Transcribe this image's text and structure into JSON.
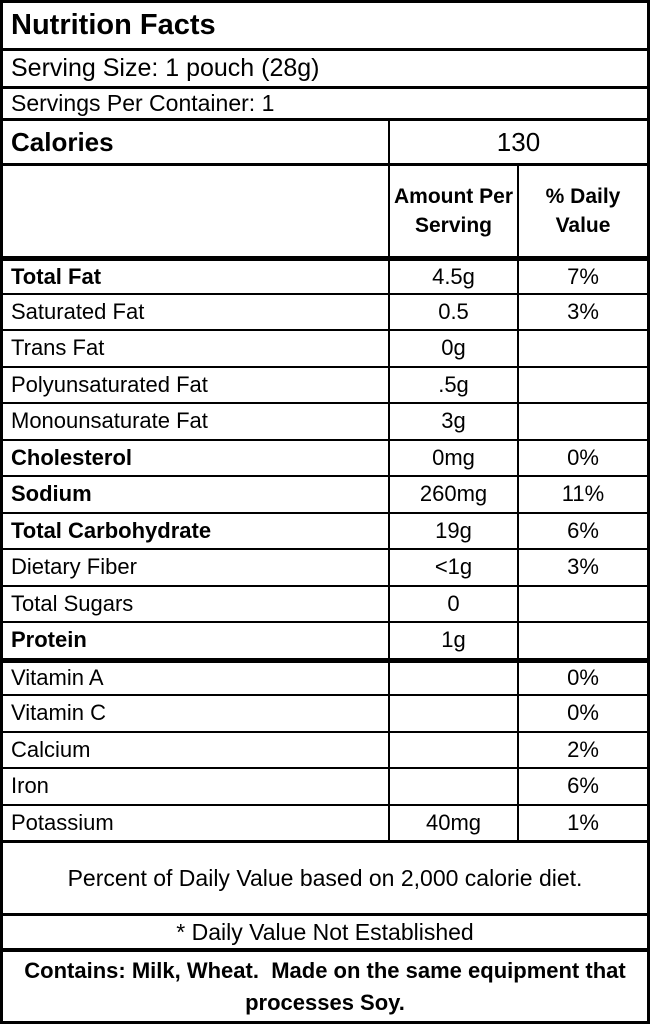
{
  "title": "Nutrition Facts",
  "serving_size": "Serving Size: 1 pouch (28g)",
  "servings_per_container": "Servings Per Container: 1",
  "calories": {
    "label": "Calories",
    "value": "130"
  },
  "columns": {
    "amount": "Amount Per Serving",
    "daily_value": "% Daily Value"
  },
  "nutrients": [
    {
      "label": "Total Fat",
      "amount": "4.5g",
      "dv": "7%"
    },
    {
      "label": "Saturated Fat",
      "amount": "0.5",
      "dv": "3%"
    },
    {
      "label": "Trans Fat",
      "amount": "0g",
      "dv": ""
    },
    {
      "label": "Polyunsaturated Fat",
      "amount": ".5g",
      "dv": ""
    },
    {
      "label": "Monounsaturate Fat",
      "amount": "3g",
      "dv": ""
    },
    {
      "label": "Cholesterol",
      "amount": "0mg",
      "dv": "0%"
    },
    {
      "label": "Sodium",
      "amount": "260mg",
      "dv": "11%"
    },
    {
      "label": "Total Carbohydrate",
      "amount": "19g",
      "dv": "6%"
    },
    {
      "label": "Dietary Fiber",
      "amount": "<1g",
      "dv": "3%"
    },
    {
      "label": "Total Sugars",
      "amount": "0",
      "dv": ""
    },
    {
      "label": "Protein",
      "amount": "1g",
      "dv": ""
    }
  ],
  "vitamins": [
    {
      "label": "Vitamin A",
      "amount": "",
      "dv": "0%"
    },
    {
      "label": "Vitamin C",
      "amount": "",
      "dv": "0%"
    },
    {
      "label": "Calcium",
      "amount": "",
      "dv": "2%"
    },
    {
      "label": "Iron",
      "amount": "",
      "dv": "6%"
    },
    {
      "label": "Potassium",
      "amount": "40mg",
      "dv": "1%"
    }
  ],
  "footnotes": {
    "percent_note": "Percent of Daily Value based on 2,000 calorie diet.",
    "not_established": "* Daily Value Not Established",
    "allergen": "Contains: Milk, Wheat.  Made on the same equipment that processes Soy."
  },
  "colors": {
    "border": "#000000",
    "background": "#ffffff",
    "text": "#000000"
  }
}
